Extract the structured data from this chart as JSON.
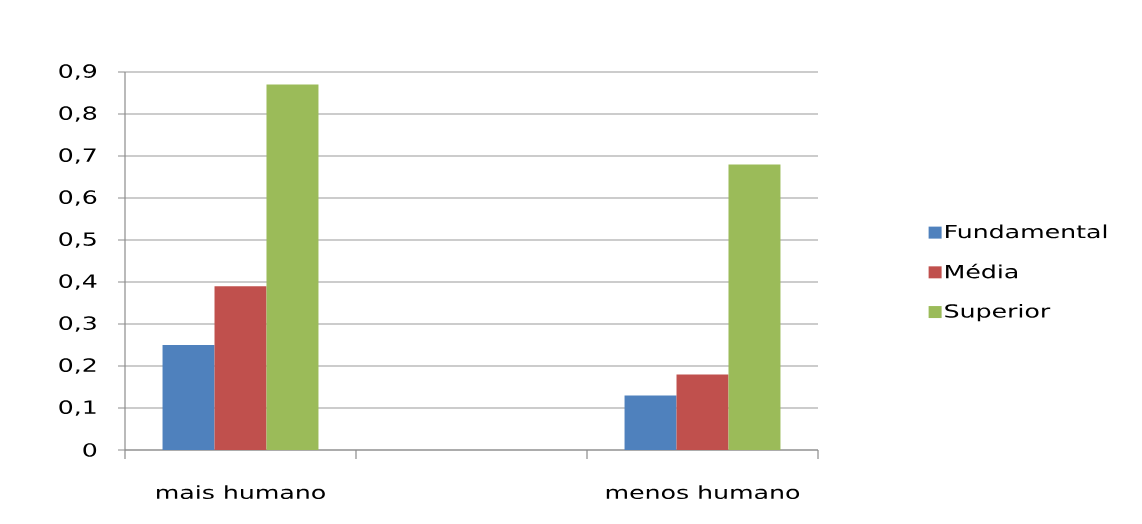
{
  "chart_data": {
    "type": "bar",
    "categories": [
      "mais humano",
      null,
      "menos humano"
    ],
    "series": [
      {
        "name": "Fundamental",
        "color": "#4f81bd",
        "values": [
          0.25,
          null,
          0.13
        ]
      },
      {
        "name": "Média",
        "color": "#c0504d",
        "values": [
          0.39,
          null,
          0.18
        ]
      },
      {
        "name": "Superior",
        "color": "#9bbb59",
        "values": [
          0.87,
          null,
          0.68
        ]
      }
    ],
    "ylim": [
      0,
      0.9
    ],
    "yticks": [
      0,
      {
        "value": 0.1,
        "label": "0,1"
      },
      {
        "value": 0.2,
        "label": "0,2"
      },
      {
        "value": 0.3,
        "label": "0,3"
      },
      {
        "value": 0.4,
        "label": "0,4"
      },
      {
        "value": 0.5,
        "label": "0,5"
      },
      {
        "value": 0.6,
        "label": "0,6"
      },
      {
        "value": 0.7,
        "label": "0,7"
      },
      {
        "value": 0.8,
        "label": "0,8"
      },
      {
        "value": 0.9,
        "label": "0,9"
      }
    ],
    "grid": "y",
    "legend": "right"
  }
}
